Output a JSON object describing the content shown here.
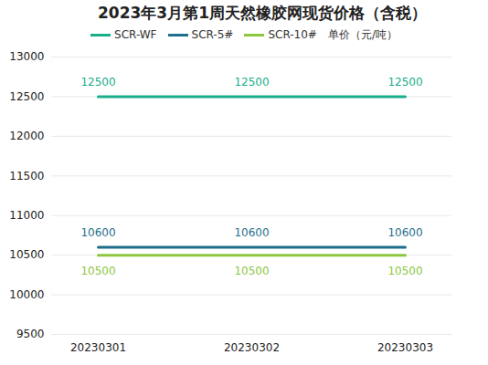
{
  "chart_data": {
    "type": "line",
    "title": "2023年3月第1周天然橡胶网现货价格（含税）",
    "y_label": "单价（元/吨）",
    "categories": [
      "20230301",
      "20230302",
      "20230303"
    ],
    "series": [
      {
        "name": "SCR-WF",
        "color": "#1aae8a",
        "values": [
          12500,
          12500,
          12500
        ]
      },
      {
        "name": "SCR-5#",
        "color": "#1f6e8c",
        "values": [
          10600,
          10600,
          10600
        ]
      },
      {
        "name": "SCR-10#",
        "color": "#8dc63f",
        "values": [
          10500,
          10500,
          10500
        ]
      }
    ],
    "ylim": [
      9500,
      13000
    ],
    "yticks": [
      9500,
      10000,
      10500,
      11000,
      11500,
      12000,
      12500,
      13000
    ],
    "grid": true,
    "legend": "top",
    "data_labels": true
  }
}
